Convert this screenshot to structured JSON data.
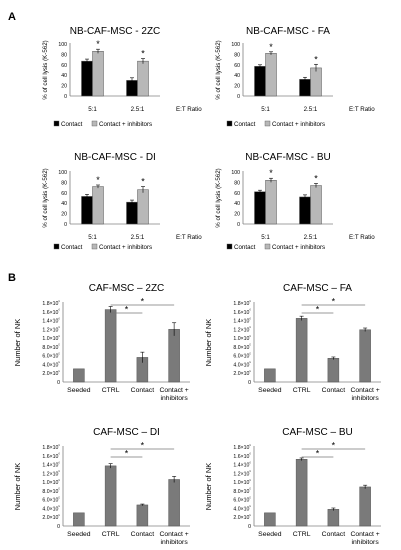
{
  "panels": [
    {
      "label": "A"
    },
    {
      "label": "B"
    }
  ],
  "colors": {
    "contact": "#000000",
    "contact_inhibitors": "#b8b8b8",
    "panel_b_bar": "#7a7a7a",
    "axis": "#808080",
    "line": "#777777"
  },
  "chart_data": [
    {
      "type": "bar",
      "panel": "A",
      "title": "NB-CAF-MSC - 2ZC",
      "ylabel": "% of cell lysis (K-562)",
      "xlabel": "E:T Ratio",
      "categories": [
        "5:1",
        "2.5:1"
      ],
      "ylim": [
        0,
        100
      ],
      "yticks": [
        "0",
        "20",
        "40",
        "60",
        "80",
        "100"
      ],
      "series": [
        {
          "name": "Contact",
          "values": [
            67,
            30
          ],
          "errors": [
            4,
            5
          ]
        },
        {
          "name": "Contact + inhibitors",
          "values": [
            86,
            67
          ],
          "errors": [
            4,
            5
          ]
        }
      ],
      "significance": [
        {
          "category": "5:1",
          "text": "*"
        },
        {
          "category": "2.5:1",
          "text": "*"
        }
      ],
      "legend": [
        "Contact",
        "Contact + inhibitors"
      ]
    },
    {
      "type": "bar",
      "panel": "A",
      "title": "NB-CAF-MSC - FA",
      "ylabel": "% of cell lysis (K-562)",
      "xlabel": "E:T Ratio",
      "categories": [
        "5:1",
        "2.5:1"
      ],
      "ylim": [
        0,
        100
      ],
      "yticks": [
        "0",
        "20",
        "40",
        "60",
        "80",
        "100"
      ],
      "series": [
        {
          "name": "Contact",
          "values": [
            57,
            32
          ],
          "errors": [
            3,
            4
          ]
        },
        {
          "name": "Contact + inhibitors",
          "values": [
            82,
            54
          ],
          "errors": [
            3,
            7
          ]
        }
      ],
      "significance": [
        {
          "category": "5:1",
          "text": "*"
        },
        {
          "category": "2.5:1",
          "text": "*"
        }
      ],
      "legend": [
        "Contact",
        "Contact + inhibitors"
      ]
    },
    {
      "type": "bar",
      "panel": "A",
      "title": "NB-CAF-MSC - DI",
      "ylabel": "% of cell lysis (K-562)",
      "xlabel": "E:T Ratio",
      "categories": [
        "5:1",
        "2.5:1"
      ],
      "ylim": [
        0,
        100
      ],
      "yticks": [
        "0",
        "20",
        "40",
        "60",
        "80",
        "100"
      ],
      "series": [
        {
          "name": "Contact",
          "values": [
            53,
            42
          ],
          "errors": [
            4,
            4
          ]
        },
        {
          "name": "Contact + inhibitors",
          "values": [
            72,
            66
          ],
          "errors": [
            3,
            6
          ]
        }
      ],
      "significance": [
        {
          "category": "5:1",
          "text": "*"
        },
        {
          "category": "2.5:1",
          "text": "*"
        }
      ],
      "legend": [
        "Contact",
        "Contact + inhibitors"
      ]
    },
    {
      "type": "bar",
      "panel": "A",
      "title": "NB-CAF-MSC - BU",
      "ylabel": "% of cell lysis (K-562)",
      "xlabel": "E:T Ratio",
      "categories": [
        "5:1",
        "2.5:1"
      ],
      "ylim": [
        0,
        100
      ],
      "yticks": [
        "0",
        "20",
        "40",
        "60",
        "80",
        "100"
      ],
      "series": [
        {
          "name": "Contact",
          "values": [
            62,
            52
          ],
          "errors": [
            3,
            4
          ]
        },
        {
          "name": "Contact + inhibitors",
          "values": [
            84,
            74
          ],
          "errors": [
            4,
            4
          ]
        }
      ],
      "significance": [
        {
          "category": "5:1",
          "text": "*"
        },
        {
          "category": "2.5:1",
          "text": "*"
        }
      ],
      "legend": [
        "Contact",
        "Contact + inhibitors"
      ]
    },
    {
      "type": "bar",
      "panel": "B",
      "title": "CAF-MSC – 2ZC",
      "ylabel": "Number of NK",
      "categories": [
        "Seeded",
        "CTRL",
        "Contact",
        "Contact + inhibitors"
      ],
      "ylim": [
        0,
        1800000
      ],
      "yticks": [
        "0",
        "2.0×10⁵",
        "4.0×10⁵",
        "6.0×10⁵",
        "8.0×10⁵",
        "1.0×10⁶",
        "1.2×10⁶",
        "1.4×10⁶",
        "1.6×10⁶",
        "1.8×10⁶"
      ],
      "values": [
        300000,
        1650000,
        560000,
        1200000
      ],
      "errors": [
        0,
        70000,
        120000,
        150000
      ],
      "significance": [
        {
          "from": "CTRL",
          "to": "Contact",
          "text": "*"
        },
        {
          "from": "CTRL",
          "to": "Contact + inhibitors",
          "text": "*"
        }
      ]
    },
    {
      "type": "bar",
      "panel": "B",
      "title": "CAF-MSC – FA",
      "ylabel": "Number of NK",
      "categories": [
        "Seeded",
        "CTRL",
        "Contact",
        "Contact + inhibitors"
      ],
      "ylim": [
        0,
        1800000
      ],
      "yticks": [
        "0",
        "2.0×10⁵",
        "4.0×10⁵",
        "6.0×10⁵",
        "8.0×10⁵",
        "1.0×10⁶",
        "1.2×10⁶",
        "1.4×10⁶",
        "1.6×10⁶",
        "1.8×10⁶"
      ],
      "values": [
        300000,
        1450000,
        540000,
        1190000
      ],
      "errors": [
        0,
        50000,
        30000,
        40000
      ],
      "significance": [
        {
          "from": "CTRL",
          "to": "Contact",
          "text": "*"
        },
        {
          "from": "CTRL",
          "to": "Contact + inhibitors",
          "text": "*"
        }
      ]
    },
    {
      "type": "bar",
      "panel": "B",
      "title": "CAF-MSC – DI",
      "ylabel": "Number of NK",
      "categories": [
        "Seeded",
        "CTRL",
        "Contact",
        "Contact + inhibitors"
      ],
      "ylim": [
        0,
        1800000
      ],
      "yticks": [
        "0",
        "2.0×10⁵",
        "4.0×10⁵",
        "6.0×10⁵",
        "8.0×10⁵",
        "1.0×10⁶",
        "1.2×10⁶",
        "1.4×10⁶",
        "1.6×10⁶",
        "1.8×10⁶"
      ],
      "values": [
        300000,
        1370000,
        480000,
        1060000
      ],
      "errors": [
        0,
        50000,
        20000,
        70000
      ],
      "significance": [
        {
          "from": "CTRL",
          "to": "Contact",
          "text": "*"
        },
        {
          "from": "CTRL",
          "to": "Contact + inhibitors",
          "text": "*"
        }
      ]
    },
    {
      "type": "bar",
      "panel": "B",
      "title": "CAF-MSC – BU",
      "ylabel": "Number of NK",
      "categories": [
        "Seeded",
        "CTRL",
        "Contact",
        "Contact + inhibitors"
      ],
      "ylim": [
        0,
        1800000
      ],
      "yticks": [
        "0",
        "2.0×10⁵",
        "4.0×10⁵",
        "6.0×10⁵",
        "8.0×10⁵",
        "1.0×10⁶",
        "1.2×10⁶",
        "1.4×10⁶",
        "1.6×10⁶",
        "1.8×10⁶"
      ],
      "values": [
        300000,
        1520000,
        380000,
        890000
      ],
      "errors": [
        0,
        30000,
        30000,
        40000
      ],
      "significance": [
        {
          "from": "CTRL",
          "to": "Contact",
          "text": "*"
        },
        {
          "from": "CTRL",
          "to": "Contact + inhibitors",
          "text": "*"
        }
      ]
    }
  ]
}
